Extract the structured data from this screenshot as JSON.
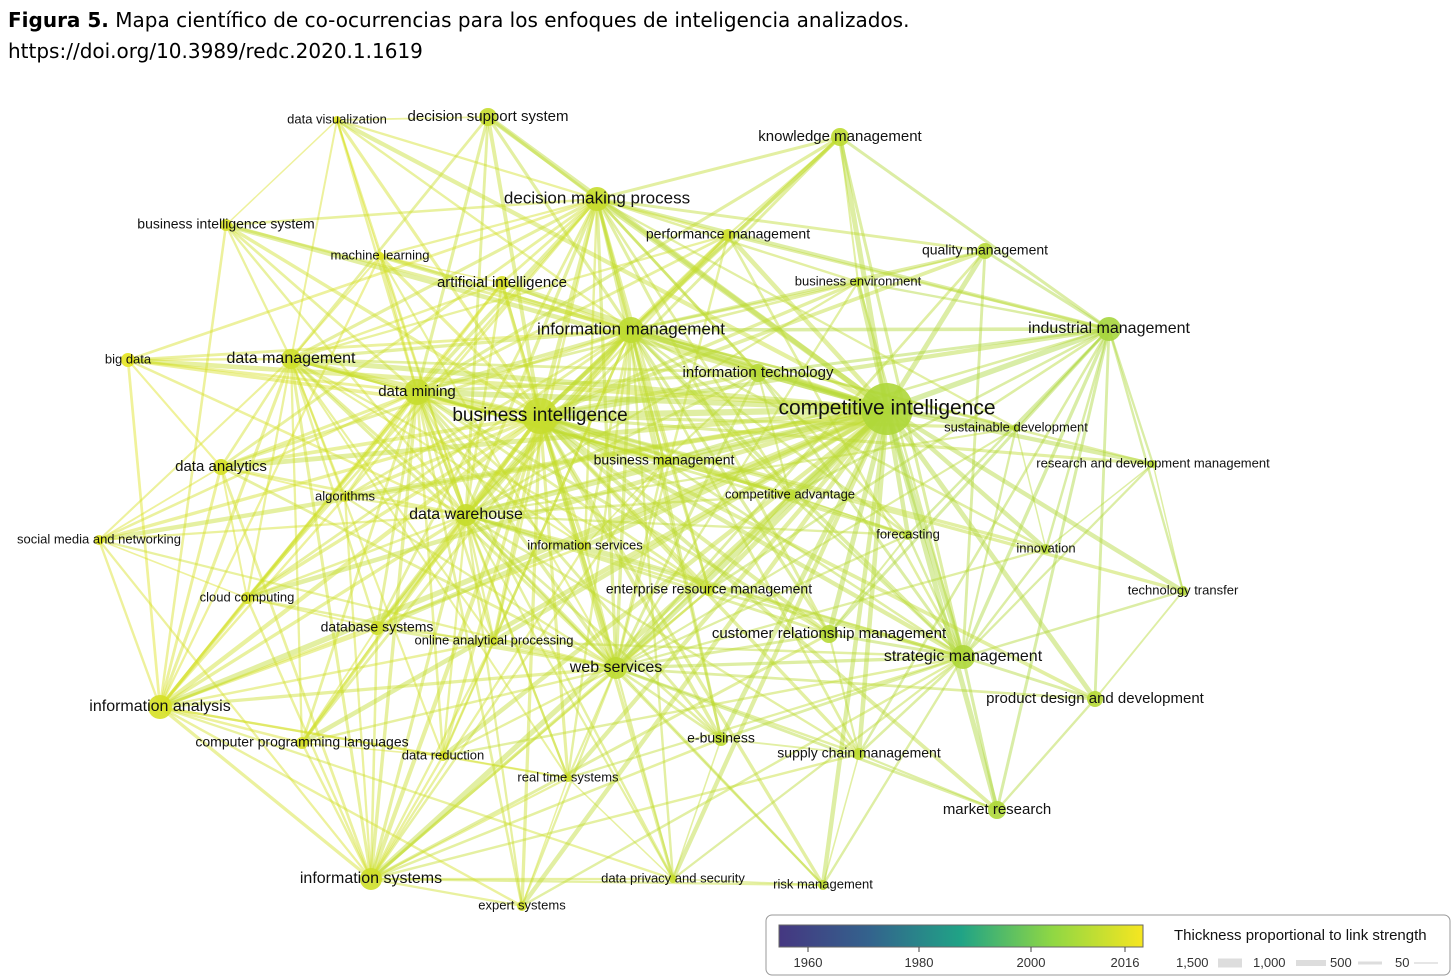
{
  "caption": {
    "label": "Figura 5.",
    "text": "Mapa científico de co-ocurrencias para los enfoques de inteligencia analizados.",
    "doi": "https://doi.org/10.3989/redc.2020.1.1619"
  },
  "nodes": [
    {
      "label": "data visualization"
    },
    {
      "label": "decision support system"
    },
    {
      "label": "knowledge management"
    },
    {
      "label": "decision making process"
    },
    {
      "label": "business intelligence system"
    },
    {
      "label": "performance management"
    },
    {
      "label": "machine learning"
    },
    {
      "label": "quality management"
    },
    {
      "label": "artificial intelligence"
    },
    {
      "label": "business environment"
    },
    {
      "label": "industrial management"
    },
    {
      "label": "information management"
    },
    {
      "label": "big data"
    },
    {
      "label": "data management"
    },
    {
      "label": "information technology"
    },
    {
      "label": "data mining"
    },
    {
      "label": "business intelligence"
    },
    {
      "label": "competitive intelligence"
    },
    {
      "label": "sustainable development"
    },
    {
      "label": "data analytics"
    },
    {
      "label": "business management"
    },
    {
      "label": "research and development management"
    },
    {
      "label": "algorithms"
    },
    {
      "label": "competitive advantage"
    },
    {
      "label": "data warehouse"
    },
    {
      "label": "forecasting"
    },
    {
      "label": "social media and networking"
    },
    {
      "label": "information services"
    },
    {
      "label": "innovation"
    },
    {
      "label": "technology transfer"
    },
    {
      "label": "enterprise resource management"
    },
    {
      "label": "cloud computing"
    },
    {
      "label": "database systems"
    },
    {
      "label": "online analytical processing"
    },
    {
      "label": "customer relationship management"
    },
    {
      "label": "strategic management"
    },
    {
      "label": "web services"
    },
    {
      "label": "information analysis"
    },
    {
      "label": "product design and development"
    },
    {
      "label": "computer programming languages"
    },
    {
      "label": "e-business"
    },
    {
      "label": "data reduction"
    },
    {
      "label": "supply chain management"
    },
    {
      "label": "real time systems"
    },
    {
      "label": "market research"
    },
    {
      "label": "information systems"
    },
    {
      "label": "data privacy and security"
    },
    {
      "label": "risk management"
    },
    {
      "label": "expert systems"
    }
  ],
  "legend": {
    "color_ticks": [
      "1960",
      "1980",
      "2000",
      "2016"
    ],
    "thickness_title": "Thickness proportional to link strength",
    "thickness_items": [
      "1,500",
      "1,000",
      "500",
      "50"
    ]
  }
}
